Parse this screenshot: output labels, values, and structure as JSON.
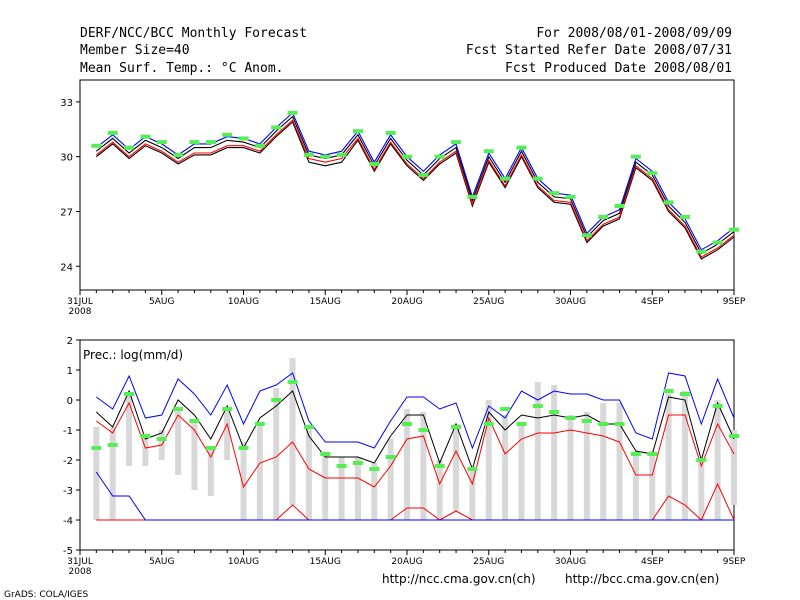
{
  "header": {
    "title": "DERF/NCC/BCC Monthly Forecast",
    "member_size": "Member Size=40",
    "variable": "Mean Surf. Temp.: °C Anom.",
    "period": "For 2008/08/01-2008/09/09",
    "start_date": "Fcst Started Refer Date 2008/07/31",
    "produced_date": "Fcst Produced Date 2008/08/01"
  },
  "footer": {
    "url_ncc": "http://ncc.cma.gov.cn(ch)",
    "url_bcc": "http://bcc.cma.gov.cn(en)",
    "credit": "GrADS: COLA/IGES"
  },
  "colors": {
    "ensemble_mean": "#000000",
    "max": "#0000ff",
    "min": "#ff0000",
    "marker": "#55ee55",
    "box": "#d8d8d8"
  },
  "chart_data": [
    {
      "type": "line",
      "title": "Mean Surf. Temp.: °C Anom.",
      "x_tick_labels": [
        "31JUL",
        "5AUG",
        "10AUG",
        "15AUG",
        "20AUG",
        "25AUG",
        "30AUG",
        "4SEP",
        "9SEP"
      ],
      "x_tick_days": [
        0,
        5,
        10,
        15,
        20,
        25,
        30,
        35,
        40
      ],
      "year_label": "2008",
      "ylim": [
        22.7,
        34.2
      ],
      "yticks": [
        24,
        27,
        30,
        33
      ],
      "x_days": [
        1,
        2,
        3,
        4,
        5,
        6,
        7,
        8,
        9,
        10,
        11,
        12,
        13,
        14,
        15,
        16,
        17,
        18,
        19,
        20,
        21,
        22,
        23,
        24,
        25,
        26,
        27,
        28,
        29,
        30,
        31,
        32,
        33,
        34,
        35,
        36,
        37,
        38,
        39,
        40
      ],
      "series": [
        {
          "name": "mean",
          "values": [
            30.3,
            31.0,
            30.2,
            30.9,
            30.5,
            29.9,
            30.5,
            30.5,
            30.9,
            30.8,
            30.5,
            31.4,
            32.2,
            30.1,
            29.9,
            30.1,
            31.2,
            29.5,
            31.0,
            29.8,
            29.0,
            29.9,
            30.5,
            27.6,
            30.0,
            28.6,
            30.3,
            28.6,
            27.8,
            27.7,
            25.6,
            26.5,
            26.9,
            29.7,
            29.0,
            27.3,
            26.4,
            24.7,
            25.2,
            25.9
          ]
        },
        {
          "name": "max",
          "values": [
            30.5,
            31.2,
            30.4,
            31.1,
            30.7,
            30.1,
            30.7,
            30.7,
            31.1,
            31.0,
            30.7,
            31.6,
            32.4,
            30.3,
            30.1,
            30.3,
            31.4,
            29.7,
            31.2,
            30.0,
            29.2,
            30.1,
            30.7,
            27.8,
            30.2,
            28.8,
            30.5,
            28.8,
            28.0,
            27.9,
            25.8,
            26.7,
            27.1,
            29.9,
            29.2,
            27.5,
            26.6,
            24.9,
            25.4,
            26.1
          ]
        },
        {
          "name": "min",
          "values": [
            30.1,
            30.8,
            30.0,
            30.7,
            30.3,
            29.7,
            30.2,
            30.2,
            30.6,
            30.6,
            30.3,
            31.2,
            32.0,
            29.9,
            29.7,
            29.9,
            31.0,
            29.3,
            30.8,
            29.6,
            28.8,
            29.7,
            30.3,
            27.4,
            29.8,
            28.4,
            30.1,
            28.4,
            27.6,
            27.5,
            25.4,
            26.3,
            26.7,
            29.5,
            28.8,
            27.1,
            26.2,
            24.5,
            25.0,
            25.7
          ]
        },
        {
          "name": "lower",
          "values": [
            30.0,
            30.7,
            29.9,
            30.6,
            30.2,
            29.6,
            30.1,
            30.1,
            30.5,
            30.5,
            30.2,
            31.1,
            31.9,
            29.7,
            29.5,
            29.7,
            30.9,
            29.2,
            30.7,
            29.5,
            28.7,
            29.6,
            30.2,
            27.3,
            29.7,
            28.3,
            30.0,
            28.3,
            27.5,
            27.4,
            25.3,
            26.2,
            26.6,
            29.4,
            28.7,
            27.0,
            26.1,
            24.4,
            24.9,
            25.6
          ]
        },
        {
          "name": "observed",
          "values": [
            30.6,
            31.3,
            30.5,
            31.1,
            30.8,
            30.1,
            30.8,
            30.8,
            31.2,
            31.0,
            30.6,
            31.6,
            32.4,
            30.1,
            30.0,
            30.1,
            31.4,
            29.6,
            31.3,
            30.0,
            29.0,
            30.0,
            30.8,
            27.8,
            30.3,
            28.8,
            30.5,
            28.8,
            28.0,
            27.8,
            25.7,
            26.7,
            27.3,
            30.0,
            29.1,
            27.5,
            26.7,
            24.8,
            25.3,
            26.0
          ]
        }
      ]
    },
    {
      "type": "line",
      "title": "Prec.: log(mm/d)",
      "x_tick_labels": [
        "31JUL",
        "5AUG",
        "10AUG",
        "15AUG",
        "20AUG",
        "25AUG",
        "30AUG",
        "4SEP",
        "9SEP"
      ],
      "x_tick_days": [
        0,
        5,
        10,
        15,
        20,
        25,
        30,
        35,
        40
      ],
      "year_label": "2008",
      "ylim": [
        -5,
        2
      ],
      "yticks": [
        -5,
        -4,
        -3,
        -2,
        -1,
        0,
        1,
        2
      ],
      "x_days": [
        1,
        2,
        3,
        4,
        5,
        6,
        7,
        8,
        9,
        10,
        11,
        12,
        13,
        14,
        15,
        16,
        17,
        18,
        19,
        20,
        21,
        22,
        23,
        24,
        25,
        26,
        27,
        28,
        29,
        30,
        31,
        32,
        33,
        34,
        35,
        36,
        37,
        38,
        39,
        40
      ],
      "series": [
        {
          "name": "max",
          "values": [
            0.1,
            -0.3,
            0.8,
            -0.6,
            -0.5,
            0.7,
            0.2,
            -0.5,
            0.5,
            -0.8,
            0.3,
            0.5,
            0.9,
            -0.7,
            -1.4,
            -1.4,
            -1.4,
            -1.6,
            -0.7,
            0.1,
            0.1,
            -0.3,
            -0.1,
            -1.6,
            -0.2,
            -0.6,
            0.3,
            0.0,
            0.3,
            0.2,
            0.2,
            0.0,
            0.0,
            -1.1,
            -1.3,
            0.9,
            0.8,
            -0.8,
            0.7,
            -0.6
          ]
        },
        {
          "name": "mean",
          "values": [
            -0.4,
            -0.9,
            0.3,
            -1.3,
            -1.1,
            0.0,
            -0.5,
            -1.3,
            -0.2,
            -1.6,
            -0.6,
            -0.2,
            0.3,
            -1.2,
            -1.9,
            -1.9,
            -1.9,
            -2.1,
            -1.2,
            -0.5,
            -0.5,
            -2.1,
            -0.8,
            -2.3,
            -0.4,
            -1.0,
            -0.5,
            -0.6,
            -0.5,
            -0.6,
            -0.5,
            -0.8,
            -0.8,
            -1.7,
            -1.8,
            0.1,
            0.0,
            -2.0,
            -0.1,
            -1.3
          ]
        },
        {
          "name": "upper_red",
          "values": [
            -0.7,
            -1.1,
            -0.1,
            -1.6,
            -1.5,
            -0.5,
            -1.0,
            -1.9,
            -0.8,
            -2.9,
            -2.1,
            -1.9,
            -1.4,
            -2.3,
            -2.6,
            -2.6,
            -2.6,
            -2.9,
            -2.2,
            -1.3,
            -1.2,
            -2.8,
            -1.7,
            -2.8,
            -0.6,
            -1.8,
            -1.3,
            -1.1,
            -1.1,
            -1.0,
            -1.1,
            -1.2,
            -1.4,
            -2.5,
            -2.5,
            -0.5,
            -0.5,
            -2.2,
            -0.8,
            -1.8
          ]
        },
        {
          "name": "lower_red",
          "values": [
            -4.0,
            -4.0,
            -4.0,
            -4.0,
            -4.0,
            -4.0,
            -4.0,
            -4.0,
            -4.0,
            -4.0,
            -4.0,
            -4.0,
            -3.5,
            -4.0,
            -4.0,
            -4.0,
            -4.0,
            -4.0,
            -4.0,
            -3.6,
            -3.6,
            -4.0,
            -3.7,
            -4.0,
            -4.0,
            -4.0,
            -4.0,
            -4.0,
            -4.0,
            -4.0,
            -4.0,
            -4.0,
            -4.0,
            -4.0,
            -4.0,
            -3.2,
            -3.5,
            -4.0,
            -2.8,
            -4.0
          ]
        },
        {
          "name": "min",
          "values": [
            -2.4,
            -3.2,
            -3.2,
            -4.0,
            -4.0,
            -4.0,
            -4.0,
            -4.0,
            -4.0,
            -4.0,
            -4.0,
            -4.0,
            -4.0,
            -4.0,
            -4.0,
            -4.0,
            -4.0,
            -4.0,
            -4.0,
            -4.0,
            -4.0,
            -4.0,
            -4.0,
            -4.0,
            -4.0,
            -4.0,
            -4.0,
            -4.0,
            -4.0,
            -4.0,
            -4.0,
            -4.0,
            -4.0,
            -4.0,
            -4.0,
            -4.0,
            -4.0,
            -4.0,
            -4.0,
            -4.0
          ]
        },
        {
          "name": "observed",
          "values": [
            -1.6,
            -1.5,
            0.2,
            -1.2,
            -1.3,
            -0.3,
            -0.7,
            -1.6,
            -0.3,
            -1.6,
            -0.8,
            0.0,
            0.6,
            -0.9,
            -1.8,
            -2.2,
            -2.1,
            -2.3,
            -1.9,
            -0.8,
            -1.0,
            -2.2,
            -0.9,
            -2.3,
            -0.8,
            -0.3,
            -0.8,
            -0.2,
            -0.4,
            -0.6,
            -0.7,
            -0.8,
            -0.8,
            -1.8,
            -1.8,
            0.3,
            0.2,
            -2.0,
            -0.2,
            -1.2
          ]
        },
        {
          "name": "box_top",
          "values": [
            -0.9,
            -0.9,
            0.2,
            -1.2,
            -1.0,
            -0.3,
            -0.7,
            -1.6,
            -0.3,
            -1.4,
            -0.8,
            0.4,
            1.4,
            -0.9,
            -1.8,
            -1.9,
            -1.9,
            -2.1,
            -1.3,
            -0.3,
            -0.4,
            -2.0,
            -0.8,
            -2.3,
            0.0,
            -0.5,
            -0.8,
            0.6,
            0.5,
            -0.5,
            -0.4,
            -0.1,
            -0.1,
            -1.7,
            -1.7,
            0.3,
            0.3,
            -2.0,
            0.0,
            -1.0
          ]
        },
        {
          "name": "box_bottom",
          "values": [
            -4.0,
            -4.0,
            -2.2,
            -2.2,
            -2.0,
            -2.5,
            -3.0,
            -3.2,
            -2.0,
            -4.0,
            -4.0,
            -4.0,
            -3.5,
            -4.0,
            -4.0,
            -4.0,
            -4.0,
            -4.0,
            -4.0,
            -4.0,
            -4.0,
            -4.0,
            -3.7,
            -4.0,
            -4.0,
            -4.0,
            -4.0,
            -4.0,
            -4.0,
            -4.0,
            -4.0,
            -4.0,
            -4.0,
            -4.0,
            -4.0,
            -4.0,
            -4.0,
            -4.0,
            -4.0,
            -3.5
          ]
        }
      ]
    }
  ]
}
